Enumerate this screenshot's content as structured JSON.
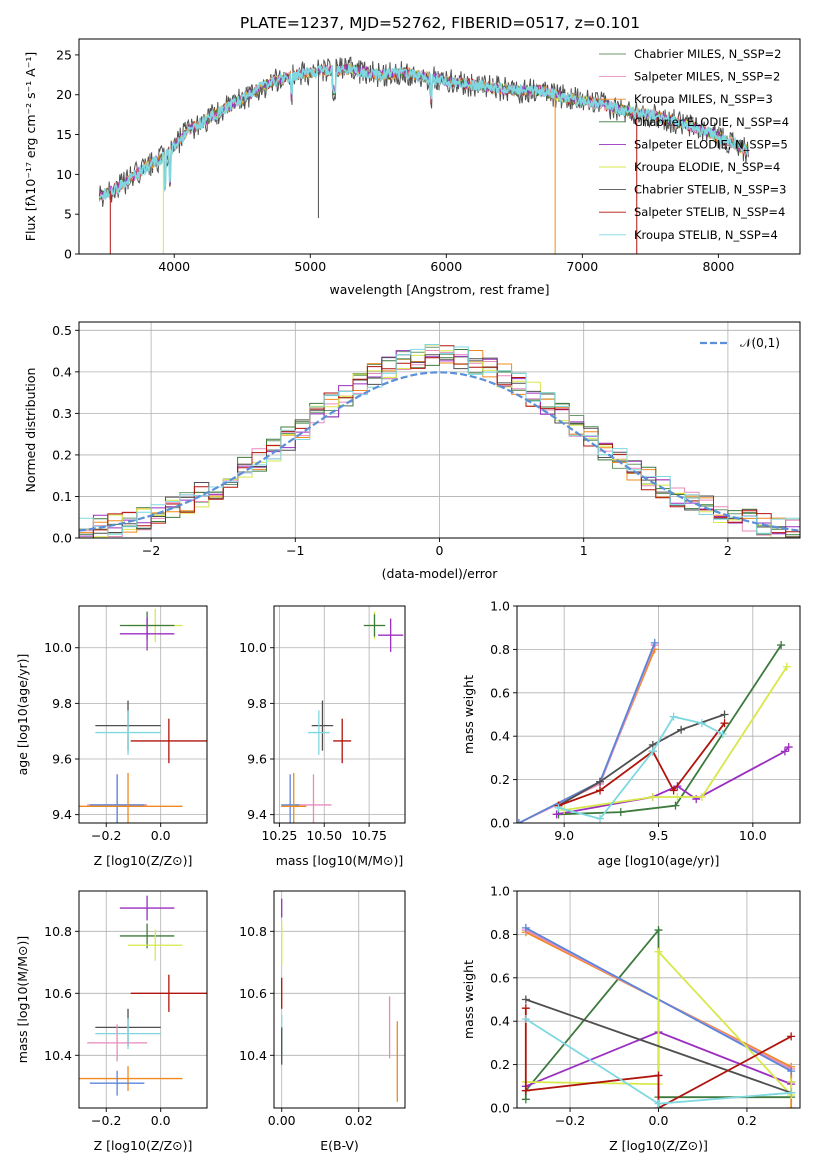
{
  "figure": {
    "title": "PLATE=1237, MJD=52762, FIBERID=0517, z=0.101"
  },
  "colors": {
    "ChabrierMILES": "#6a9a6a",
    "SalpeterMILES": "#e88cbe",
    "KroupaMILES": "#f08a1f",
    "ChabrierELODIE": "#3d7a3d",
    "SalpeterELODIE": "#9b2fc1",
    "KroupaELODIE": "#d7e84a",
    "ChabrierSTELIB": "#505050",
    "SalpeterSTELIB": "#b0140c",
    "KroupaSTELIB": "#7fd8e0",
    "kroupaBlue": "#5b86d8",
    "grid": "#b0b0b0",
    "normal": "#5b8fd8"
  },
  "chart_data": [
    {
      "id": "spectrum",
      "type": "line",
      "xlabel": "wavelength [Angstrom, rest frame]",
      "ylabel": "Flux [fλ10⁻¹⁷ erg cm⁻² s⁻¹ A⁻¹]",
      "xlim": [
        3300,
        8600
      ],
      "ylim": [
        0,
        27
      ],
      "xticks": [
        4000,
        5000,
        6000,
        7000,
        8000
      ],
      "yticks": [
        0,
        5,
        10,
        15,
        20,
        25
      ],
      "grid": false,
      "legend_position": "right",
      "legend": [
        {
          "label": "Chabrier MILES, N_SSP=2",
          "color": "ChabrierMILES"
        },
        {
          "label": "Salpeter MILES, N_SSP=2",
          "color": "SalpeterMILES"
        },
        {
          "label": "Kroupa MILES, N_SSP=3",
          "color": "KroupaMILES"
        },
        {
          "label": "Chabrier ELODIE, N_SSP=4",
          "color": "ChabrierELODIE"
        },
        {
          "label": "Salpeter ELODIE, N_SSP=5",
          "color": "SalpeterELODIE"
        },
        {
          "label": "Kroupa ELODIE, N_SSP=4",
          "color": "KroupaELODIE"
        },
        {
          "label": "Chabrier STELIB, N_SSP=3",
          "color": "ChabrierSTELIB"
        },
        {
          "label": "Salpeter STELIB, N_SSP=4",
          "color": "SalpeterSTELIB"
        },
        {
          "label": "Kroupa STELIB, N_SSP=4",
          "color": "KroupaSTELIB"
        }
      ],
      "continuum": [
        [
          3450,
          7.2
        ],
        [
          3600,
          8.5
        ],
        [
          3800,
          11
        ],
        [
          3950,
          12.5
        ],
        [
          4100,
          15.5
        ],
        [
          4300,
          17.5
        ],
        [
          4500,
          19.5
        ],
        [
          4700,
          21.5
        ],
        [
          4900,
          22.5
        ],
        [
          5100,
          23
        ],
        [
          5300,
          23.2
        ],
        [
          5500,
          22.5
        ],
        [
          5700,
          22.8
        ],
        [
          5900,
          22
        ],
        [
          6100,
          21.5
        ],
        [
          6300,
          21
        ],
        [
          6500,
          20.5
        ],
        [
          6700,
          20.5
        ],
        [
          6900,
          19.5
        ],
        [
          7100,
          19
        ],
        [
          7300,
          18
        ],
        [
          7500,
          17.5
        ],
        [
          7700,
          16.5
        ],
        [
          7900,
          15.5
        ],
        [
          8100,
          14
        ],
        [
          8200,
          13
        ]
      ]
    },
    {
      "id": "residuals",
      "type": "histogram",
      "xlabel": "(data-model)/error",
      "ylabel": "Normed distribution",
      "xlim": [
        -2.5,
        2.5
      ],
      "ylim": [
        0,
        0.52
      ],
      "xticks": [
        -2,
        -1,
        0,
        1,
        2
      ],
      "yticks": [
        0.0,
        0.1,
        0.2,
        0.3,
        0.4,
        0.5
      ],
      "grid": true,
      "legend_position": "top-right",
      "normal_label": "𝒩(0,1)",
      "bin_width": 0.1
    },
    {
      "id": "age_vs_Z",
      "type": "errorbar",
      "xlabel": "Z [log10(Z/Z⊙)]",
      "ylabel": "age  [log10(age/yr)]",
      "xlim": [
        -0.3,
        0.17
      ],
      "ylim": [
        9.37,
        10.15
      ],
      "xticks": [
        -0.2,
        0.0
      ],
      "yticks": [
        9.4,
        9.6,
        9.8,
        10.0
      ],
      "grid": true,
      "points": [
        {
          "c": "KroupaELODIE",
          "x": -0.02,
          "y": 10.08,
          "ex": 0.1,
          "ey": 0.06
        },
        {
          "c": "ChabrierELODIE",
          "x": -0.05,
          "y": 10.08,
          "ex": 0.1,
          "ey": 0.05
        },
        {
          "c": "SalpeterELODIE",
          "x": -0.05,
          "y": 10.05,
          "ex": 0.1,
          "ey": 0.06
        },
        {
          "c": "ChabrierSTELIB",
          "x": -0.12,
          "y": 9.72,
          "ex": 0.12,
          "ey": 0.09
        },
        {
          "c": "KroupaSTELIB",
          "x": -0.12,
          "y": 9.695,
          "ex": 0.12,
          "ey": 0.08
        },
        {
          "c": "SalpeterSTELIB",
          "x": 0.03,
          "y": 9.665,
          "ex": 0.14,
          "ey": 0.08
        },
        {
          "c": "SalpeterMILES",
          "x": -0.16,
          "y": 9.435,
          "ex": 0.11,
          "ey": 0.11
        },
        {
          "c": "kroupaBlue",
          "x": -0.16,
          "y": 9.435,
          "ex": 0.1,
          "ey": 0.11
        },
        {
          "c": "KroupaMILES",
          "x": -0.12,
          "y": 9.43,
          "ex": 0.2,
          "ey": 0.12
        }
      ]
    },
    {
      "id": "age_vs_mass",
      "type": "errorbar",
      "xlabel": "mass [log10(M/M⊙)]",
      "ylabel": "",
      "xlim": [
        10.22,
        10.95
      ],
      "ylim": [
        9.37,
        10.15
      ],
      "xticks": [
        10.25,
        10.5,
        10.75
      ],
      "yticks": [
        9.4,
        9.6,
        9.8,
        10.0
      ],
      "grid": true,
      "points": [
        {
          "c": "KroupaELODIE",
          "x": 10.78,
          "y": 10.08,
          "ex": 0.05,
          "ey": 0.05
        },
        {
          "c": "ChabrierELODIE",
          "x": 10.78,
          "y": 10.08,
          "ex": 0.06,
          "ey": 0.04
        },
        {
          "c": "SalpeterELODIE",
          "x": 10.87,
          "y": 10.045,
          "ex": 0.07,
          "ey": 0.06
        },
        {
          "c": "ChabrierSTELIB",
          "x": 10.49,
          "y": 9.72,
          "ex": 0.06,
          "ey": 0.09
        },
        {
          "c": "KroupaSTELIB",
          "x": 10.47,
          "y": 9.695,
          "ex": 0.06,
          "ey": 0.08
        },
        {
          "c": "SalpeterSTELIB",
          "x": 10.6,
          "y": 9.665,
          "ex": 0.05,
          "ey": 0.08
        },
        {
          "c": "SalpeterMILES",
          "x": 10.44,
          "y": 9.435,
          "ex": 0.1,
          "ey": 0.11
        },
        {
          "c": "kroupaBlue",
          "x": 10.31,
          "y": 9.435,
          "ex": 0.05,
          "ey": 0.11
        },
        {
          "c": "KroupaMILES",
          "x": 10.33,
          "y": 9.43,
          "ex": 0.07,
          "ey": 0.12
        }
      ]
    },
    {
      "id": "massweight_vs_age",
      "type": "line",
      "xlabel": "age  [log10(age/yr)]",
      "ylabel": "mass weight",
      "xlim": [
        8.75,
        10.25
      ],
      "ylim": [
        0,
        1.0
      ],
      "xticks": [
        9.0,
        9.5,
        10.0
      ],
      "yticks": [
        0.0,
        0.2,
        0.4,
        0.6,
        0.8,
        1.0
      ],
      "grid": true,
      "series": [
        {
          "c": "KroupaMILES",
          "x": [
            8.76,
            9.19,
            9.48
          ],
          "y": [
            0.0,
            0.19,
            0.8
          ]
        },
        {
          "c": "SalpeterMILES",
          "x": [
            8.76,
            9.19,
            9.48
          ],
          "y": [
            0.0,
            0.18,
            0.82
          ]
        },
        {
          "c": "kroupaBlue",
          "x": [
            8.76,
            9.19,
            9.48
          ],
          "y": [
            0.0,
            0.19,
            0.83
          ]
        },
        {
          "c": "ChabrierELODIE",
          "x": [
            8.97,
            9.3,
            9.59,
            10.15
          ],
          "y": [
            0.04,
            0.05,
            0.08,
            0.82
          ]
        },
        {
          "c": "SalpeterELODIE",
          "x": [
            8.96,
            9.47,
            9.6,
            9.7,
            10.17,
            10.19
          ],
          "y": [
            0.04,
            0.12,
            0.17,
            0.11,
            0.33,
            0.35
          ]
        },
        {
          "c": "KroupaELODIE",
          "x": [
            9.0,
            9.47,
            9.6,
            9.73,
            10.18
          ],
          "y": [
            0.06,
            0.12,
            0.12,
            0.12,
            0.72
          ]
        },
        {
          "c": "ChabrierSTELIB",
          "x": [
            8.97,
            9.19,
            9.47,
            9.62,
            9.85
          ],
          "y": [
            0.08,
            0.19,
            0.36,
            0.43,
            0.5
          ]
        },
        {
          "c": "SalpeterSTELIB",
          "x": [
            8.97,
            9.19,
            9.47,
            9.58,
            9.85
          ],
          "y": [
            0.08,
            0.15,
            0.33,
            0.15,
            0.46
          ]
        },
        {
          "c": "KroupaSTELIB",
          "x": [
            8.97,
            9.19,
            9.47,
            9.58,
            9.73,
            9.84
          ],
          "y": [
            0.07,
            0.02,
            0.33,
            0.49,
            0.46,
            0.41
          ]
        }
      ]
    },
    {
      "id": "mass_vs_Z",
      "type": "errorbar",
      "xlabel": "Z [log10(Z/Z⊙)]",
      "ylabel": "mass [log10(M/M⊙)]",
      "xlim": [
        -0.3,
        0.17
      ],
      "ylim": [
        10.23,
        10.93
      ],
      "xticks": [
        -0.2,
        0.0
      ],
      "yticks": [
        10.4,
        10.6,
        10.8
      ],
      "grid": true,
      "points": [
        {
          "c": "SalpeterELODIE",
          "x": -0.05,
          "y": 10.875,
          "ex": 0.1,
          "ey": 0.04
        },
        {
          "c": "ChabrierELODIE",
          "x": -0.05,
          "y": 10.785,
          "ex": 0.1,
          "ey": 0.04
        },
        {
          "c": "KroupaELODIE",
          "x": -0.02,
          "y": 10.755,
          "ex": 0.1,
          "ey": 0.05
        },
        {
          "c": "SalpeterSTELIB",
          "x": 0.03,
          "y": 10.6,
          "ex": 0.14,
          "ey": 0.06
        },
        {
          "c": "ChabrierSTELIB",
          "x": -0.12,
          "y": 10.49,
          "ex": 0.12,
          "ey": 0.06
        },
        {
          "c": "KroupaSTELIB",
          "x": -0.12,
          "y": 10.47,
          "ex": 0.12,
          "ey": 0.05
        },
        {
          "c": "SalpeterMILES",
          "x": -0.16,
          "y": 10.44,
          "ex": 0.11,
          "ey": 0.06
        },
        {
          "c": "KroupaMILES",
          "x": -0.12,
          "y": 10.325,
          "ex": 0.2,
          "ey": 0.04
        },
        {
          "c": "kroupaBlue",
          "x": -0.16,
          "y": 10.31,
          "ex": 0.1,
          "ey": 0.04
        }
      ]
    },
    {
      "id": "mass_vs_EBV",
      "type": "errorbar",
      "xlabel": "E(B-V)",
      "ylabel": "",
      "xlim": [
        -0.002,
        0.032
      ],
      "ylim": [
        10.23,
        10.93
      ],
      "xticks": [
        0.0,
        0.02
      ],
      "yticks": [
        10.4,
        10.6,
        10.8
      ],
      "grid": true,
      "points": [
        {
          "c": "SalpeterELODIE",
          "x": 0.0,
          "y": 10.875,
          "ex": 0,
          "ey": 0.03
        },
        {
          "c": "KroupaELODIE",
          "x": 0.0,
          "y": 10.76,
          "ex": 0,
          "ey": 0.07
        },
        {
          "c": "SalpeterSTELIB",
          "x": 0.0,
          "y": 10.6,
          "ex": 0,
          "ey": 0.05
        },
        {
          "c": "KroupaSTELIB",
          "x": 0.0,
          "y": 10.46,
          "ex": 0,
          "ey": 0.07
        },
        {
          "c": "ChabrierSTELIB",
          "x": 0.0,
          "y": 10.43,
          "ex": 0,
          "ey": 0.06
        },
        {
          "c": "SalpeterMILES",
          "x": 0.028,
          "y": 10.49,
          "ex": 0,
          "ey": 0.1
        },
        {
          "c": "KroupaMILES",
          "x": 0.03,
          "y": 10.38,
          "ex": 0,
          "ey": 0.13
        }
      ]
    },
    {
      "id": "massweight_vs_Z",
      "type": "line",
      "xlabel": "Z [log10(Z/Z⊙)]",
      "ylabel": "mass weight",
      "xlim": [
        -0.32,
        0.32
      ],
      "ylim": [
        0,
        1.0
      ],
      "xticks": [
        -0.2,
        0.0,
        0.2
      ],
      "yticks": [
        0.0,
        0.2,
        0.4,
        0.6,
        0.8,
        1.0
      ],
      "grid": true,
      "series": [
        {
          "c": "ChabrierELODIE",
          "x": [
            -0.3,
            -0.3,
            0.0,
            0.0,
            0.3
          ],
          "y": [
            0.04,
            0.08,
            0.82,
            0.05,
            0.05
          ]
        },
        {
          "c": "KroupaMILES",
          "x": [
            -0.3,
            0.3,
            0.3
          ],
          "y": [
            0.81,
            0.19,
            0.0
          ]
        },
        {
          "c": "SalpeterMILES",
          "x": [
            -0.3,
            0.3
          ],
          "y": [
            0.82,
            0.18
          ]
        },
        {
          "c": "kroupaBlue",
          "x": [
            -0.3,
            0.3
          ],
          "y": [
            0.83,
            0.17
          ]
        },
        {
          "c": "SalpeterELODIE",
          "x": [
            -0.3,
            0.0,
            0.3,
            0.3
          ],
          "y": [
            0.1,
            0.35,
            0.11,
            0.12
          ]
        },
        {
          "c": "KroupaELODIE",
          "x": [
            -0.3,
            0.0,
            0.0,
            0.3,
            0.3
          ],
          "y": [
            0.12,
            0.11,
            0.72,
            0.06,
            0.12
          ]
        },
        {
          "c": "ChabrierSTELIB",
          "x": [
            -0.3,
            0.3
          ],
          "y": [
            0.5,
            0.07
          ]
        },
        {
          "c": "SalpeterSTELIB",
          "x": [
            -0.3,
            -0.3,
            0.0,
            0.0,
            0.3
          ],
          "y": [
            0.46,
            0.08,
            0.15,
            0.0,
            0.33
          ]
        },
        {
          "c": "KroupaSTELIB",
          "x": [
            -0.3,
            0.0,
            0.3
          ],
          "y": [
            0.41,
            0.02,
            0.07
          ]
        }
      ]
    }
  ]
}
